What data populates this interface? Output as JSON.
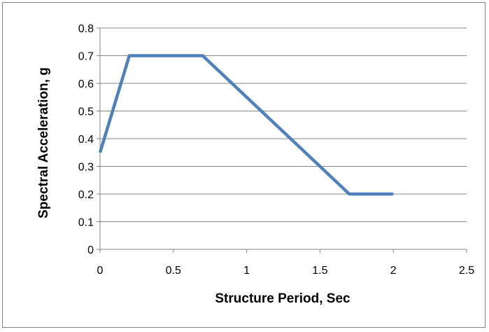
{
  "chart_data": {
    "type": "line",
    "title": "",
    "xlabel": "Structure Period, Sec",
    "ylabel": "Spectral Acceleration, g",
    "xlim": [
      0,
      2.5
    ],
    "ylim": [
      0,
      0.8
    ],
    "x_ticks": [
      "0",
      "0.5",
      "1",
      "1.5",
      "2",
      "2.5"
    ],
    "y_ticks": [
      "0",
      "0.1",
      "0.2",
      "0.3",
      "0.4",
      "0.5",
      "0.6",
      "0.7",
      "0.8"
    ],
    "grid": "horizontal",
    "legend": "none",
    "series": [
      {
        "color": "#4F81BD",
        "x": [
          0,
          0.2,
          0.7,
          1.7,
          2.0
        ],
        "y": [
          0.35,
          0.7,
          0.7,
          0.2,
          0.2
        ]
      }
    ]
  }
}
